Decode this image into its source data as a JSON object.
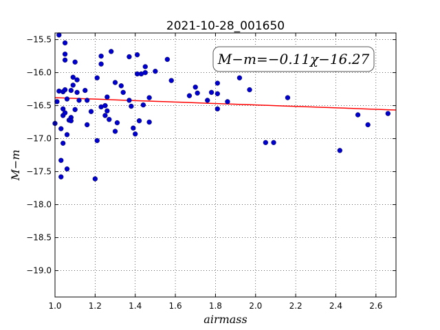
{
  "chart_data": {
    "type": "scatter",
    "title": "2021-10-28_001650",
    "xlabel": "airmass",
    "ylabel": "M−m",
    "xlim": [
      1.0,
      2.7
    ],
    "ylim": [
      -19.4,
      -15.4
    ],
    "y_inverted": true,
    "grid": true,
    "grid_style": "dotted",
    "x_ticks": [
      "1.0",
      "1.2",
      "1.4",
      "1.6",
      "1.8",
      "2.0",
      "2.2",
      "2.4",
      "2.6"
    ],
    "x_tick_values": [
      1.0,
      1.2,
      1.4,
      1.6,
      1.8,
      2.0,
      2.2,
      2.4,
      2.6
    ],
    "y_ticks": [
      "−15.5",
      "−16.0",
      "−16.5",
      "−17.0",
      "−17.5",
      "−18.0",
      "−18.5",
      "−19.0"
    ],
    "y_tick_values": [
      -15.5,
      -16.0,
      -16.5,
      -17.0,
      -17.5,
      -18.0,
      -18.5,
      -19.0
    ],
    "annotation": "M−m=−0.11χ−16.27",
    "fit_line": {
      "slope": -0.11,
      "intercept": -16.27,
      "color": "#ff0000"
    },
    "point_color": "#0000cc",
    "points": [
      [
        1.0,
        -16.77
      ],
      [
        1.01,
        -16.44
      ],
      [
        1.02,
        -15.43
      ],
      [
        1.02,
        -16.28
      ],
      [
        1.03,
        -16.85
      ],
      [
        1.03,
        -17.33
      ],
      [
        1.03,
        -17.58
      ],
      [
        1.04,
        -16.65
      ],
      [
        1.04,
        -16.55
      ],
      [
        1.04,
        -17.07
      ],
      [
        1.04,
        -16.29
      ],
      [
        1.05,
        -15.81
      ],
      [
        1.05,
        -15.72
      ],
      [
        1.05,
        -15.55
      ],
      [
        1.05,
        -16.26
      ],
      [
        1.05,
        -16.61
      ],
      [
        1.06,
        -16.94
      ],
      [
        1.06,
        -16.4
      ],
      [
        1.06,
        -17.46
      ],
      [
        1.07,
        -16.72
      ],
      [
        1.08,
        -16.68
      ],
      [
        1.08,
        -16.73
      ],
      [
        1.08,
        -16.27
      ],
      [
        1.09,
        -16.07
      ],
      [
        1.09,
        -16.19
      ],
      [
        1.1,
        -15.84
      ],
      [
        1.1,
        -16.56
      ],
      [
        1.11,
        -16.11
      ],
      [
        1.11,
        -16.3
      ],
      [
        1.12,
        -16.42
      ],
      [
        1.15,
        -16.27
      ],
      [
        1.16,
        -16.42
      ],
      [
        1.16,
        -16.79
      ],
      [
        1.18,
        -16.59
      ],
      [
        1.2,
        -17.61
      ],
      [
        1.21,
        -17.03
      ],
      [
        1.21,
        -16.08
      ],
      [
        1.23,
        -15.75
      ],
      [
        1.23,
        -15.87
      ],
      [
        1.23,
        -16.52
      ],
      [
        1.25,
        -16.65
      ],
      [
        1.25,
        -16.5
      ],
      [
        1.26,
        -16.37
      ],
      [
        1.26,
        -16.58
      ],
      [
        1.27,
        -16.71
      ],
      [
        1.28,
        -15.68
      ],
      [
        1.3,
        -16.15
      ],
      [
        1.3,
        -16.89
      ],
      [
        1.31,
        -16.76
      ],
      [
        1.33,
        -16.2
      ],
      [
        1.34,
        -16.3
      ],
      [
        1.37,
        -15.76
      ],
      [
        1.37,
        -16.42
      ],
      [
        1.38,
        -16.51
      ],
      [
        1.39,
        -16.84
      ],
      [
        1.4,
        -16.93
      ],
      [
        1.41,
        -16.02
      ],
      [
        1.41,
        -15.73
      ],
      [
        1.42,
        -16.73
      ],
      [
        1.43,
        -16.02
      ],
      [
        1.44,
        -16.49
      ],
      [
        1.45,
        -16.0
      ],
      [
        1.45,
        -15.91
      ],
      [
        1.47,
        -16.38
      ],
      [
        1.47,
        -16.75
      ],
      [
        1.5,
        -15.98
      ],
      [
        1.56,
        -15.8
      ],
      [
        1.58,
        -16.12
      ],
      [
        1.67,
        -16.35
      ],
      [
        1.7,
        -16.22
      ],
      [
        1.71,
        -16.31
      ],
      [
        1.76,
        -16.42
      ],
      [
        1.78,
        -16.3
      ],
      [
        1.81,
        -16.16
      ],
      [
        1.81,
        -16.32
      ],
      [
        1.81,
        -16.55
      ],
      [
        1.86,
        -16.44
      ],
      [
        1.92,
        -16.08
      ],
      [
        1.97,
        -16.26
      ],
      [
        2.05,
        -17.06
      ],
      [
        2.09,
        -17.06
      ],
      [
        2.16,
        -16.38
      ],
      [
        2.42,
        -17.18
      ],
      [
        2.51,
        -16.64
      ],
      [
        2.56,
        -16.79
      ],
      [
        2.66,
        -16.62
      ]
    ]
  }
}
